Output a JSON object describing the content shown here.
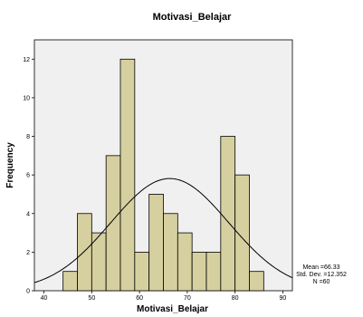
{
  "chart_data": {
    "type": "histogram",
    "title": "Motivasi_Belajar",
    "xlabel": "Motivasi_Belajar",
    "ylabel": "Frequency",
    "xlim": [
      38,
      92
    ],
    "ylim": [
      0,
      13
    ],
    "x_ticks": [
      "40",
      "50",
      "60",
      "70",
      "80",
      "90"
    ],
    "y_ticks": [
      "0",
      "2",
      "4",
      "6",
      "8",
      "10",
      "12"
    ],
    "bin_width": 3,
    "bins": [
      {
        "start": 44,
        "end": 47,
        "value": 1
      },
      {
        "start": 47,
        "end": 50,
        "value": 4
      },
      {
        "start": 50,
        "end": 53,
        "value": 3
      },
      {
        "start": 53,
        "end": 56,
        "value": 7
      },
      {
        "start": 56,
        "end": 59,
        "value": 12
      },
      {
        "start": 59,
        "end": 62,
        "value": 2
      },
      {
        "start": 62,
        "end": 65,
        "value": 5
      },
      {
        "start": 65,
        "end": 68,
        "value": 4
      },
      {
        "start": 68,
        "end": 71,
        "value": 3
      },
      {
        "start": 71,
        "end": 74,
        "value": 2
      },
      {
        "start": 74,
        "end": 77,
        "value": 2
      },
      {
        "start": 77,
        "end": 80,
        "value": 8
      },
      {
        "start": 80,
        "end": 83,
        "value": 6
      },
      {
        "start": 83,
        "end": 86,
        "value": 1
      }
    ],
    "normal_curve": {
      "mean": 66.33,
      "sd": 12.352,
      "n": 60,
      "color": "#000000"
    },
    "stats_text": [
      "Mean =66.33",
      "Std. Dev. =12.352",
      "N =60"
    ],
    "colors": {
      "bar_fill": "#d6d0a0",
      "bar_stroke": "#000000",
      "plot_bg": "#f0f0f0"
    },
    "grid": false
  }
}
